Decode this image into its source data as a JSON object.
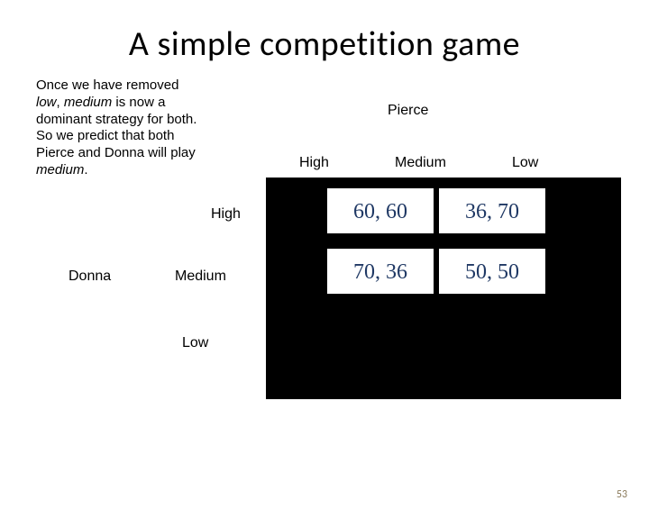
{
  "title": "A simple competition game",
  "description_parts": {
    "p1": "Once we have removed ",
    "low": "low",
    "p2": ", ",
    "medium": "medium",
    "p3": " is now a dominant strategy for both. So we predict that both Pierce and Donna will play ",
    "medium2": "medium",
    "p4": "."
  },
  "players": {
    "col": "Pierce",
    "row": "Donna"
  },
  "col_headers": {
    "high": "High",
    "medium": "Medium",
    "low": "Low"
  },
  "row_headers": {
    "high": "High",
    "medium": "Medium",
    "low": "Low"
  },
  "payoffs": {
    "hh": "60, 60",
    "hm": "36, 70",
    "mh": "70, 36",
    "mm": "50, 50"
  },
  "page_number": "53",
  "colors": {
    "cell_text": "#1f3864",
    "black": "#000000",
    "pagenum": "#8a7a5a"
  }
}
